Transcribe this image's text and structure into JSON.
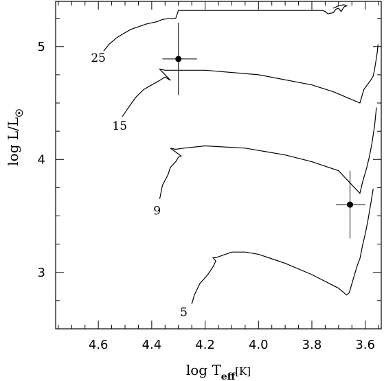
{
  "chart_data": {
    "type": "line",
    "title": "",
    "xlabel": {
      "main": "log T",
      "sub": "eff",
      "unit": "[K]"
    },
    "ylabel": {
      "main": "log L/L",
      "sub": "☉"
    },
    "xlim": [
      4.76,
      3.54
    ],
    "ylim": [
      2.5,
      5.4
    ],
    "x_reversed": true,
    "grid": false,
    "x_ticks": [
      "4.6",
      "4.4",
      "4.2",
      "4.0",
      "3.8",
      "3.6"
    ],
    "y_ticks": [
      "3",
      "4",
      "5"
    ],
    "series": [
      {
        "name": "25",
        "x": [
          4.58,
          4.56,
          4.53,
          4.48,
          4.42,
          4.38,
          4.36,
          4.33,
          4.31,
          4.3,
          4.18,
          4.0,
          3.87,
          3.76,
          3.75,
          3.74,
          3.72,
          3.71,
          3.7,
          3.69,
          3.68,
          3.67,
          3.68,
          3.7,
          3.72
        ],
        "y": [
          4.96,
          5.02,
          5.08,
          5.15,
          5.2,
          5.22,
          5.24,
          5.25,
          5.25,
          5.32,
          5.32,
          5.32,
          5.32,
          5.32,
          5.31,
          5.29,
          5.3,
          5.33,
          5.34,
          5.31,
          5.35,
          5.36,
          5.37,
          5.36,
          5.34
        ]
      },
      {
        "name": "15",
        "x": [
          4.51,
          4.49,
          4.46,
          4.43,
          4.4,
          4.37,
          4.35,
          4.33,
          4.37,
          4.35,
          4.3,
          4.2,
          4.0,
          3.8,
          3.72,
          3.62,
          3.605,
          3.58,
          3.57,
          3.565,
          3.56,
          3.555,
          3.552
        ],
        "y": [
          4.38,
          4.45,
          4.55,
          4.62,
          4.66,
          4.7,
          4.73,
          4.7,
          4.8,
          4.79,
          4.79,
          4.79,
          4.75,
          4.66,
          4.6,
          4.5,
          4.62,
          4.7,
          4.74,
          4.8,
          4.87,
          4.95,
          5.02
        ]
      },
      {
        "name": "9",
        "x": [
          4.37,
          4.36,
          4.34,
          4.33,
          4.31,
          4.3,
          4.29,
          4.33,
          4.31,
          4.28,
          4.2,
          4.05,
          3.9,
          3.8,
          3.7,
          3.62,
          3.61,
          3.595,
          3.585,
          3.575,
          3.565,
          3.558
        ],
        "y": [
          3.65,
          3.77,
          3.86,
          3.93,
          3.98,
          4.02,
          4.03,
          4.1,
          4.09,
          4.1,
          4.12,
          4.1,
          4.04,
          3.98,
          3.9,
          3.7,
          3.8,
          3.92,
          4.02,
          4.14,
          4.3,
          4.46
        ]
      },
      {
        "name": "5",
        "x": [
          4.25,
          4.24,
          4.22,
          4.19,
          4.17,
          4.16,
          4.17,
          4.16,
          4.1,
          4.05,
          4.0,
          3.95,
          3.9,
          3.8,
          3.7,
          3.68,
          3.67,
          3.66,
          3.655,
          3.65,
          3.64,
          3.63,
          3.62,
          3.61,
          3.6,
          3.59,
          3.58,
          3.57
        ],
        "y": [
          2.72,
          2.8,
          2.9,
          2.98,
          3.05,
          3.1,
          3.13,
          3.13,
          3.18,
          3.18,
          3.16,
          3.12,
          3.08,
          2.98,
          2.86,
          2.82,
          2.8,
          2.82,
          2.86,
          2.9,
          2.98,
          3.06,
          3.12,
          3.24,
          3.34,
          3.46,
          3.6,
          3.74
        ]
      }
    ],
    "points": [
      {
        "x": 4.3,
        "y": 4.89,
        "x_err": [
          4.36,
          4.23
        ],
        "y_err": [
          4.57,
          5.21
        ]
      },
      {
        "x": 3.657,
        "y": 3.6,
        "x_err": [
          3.71,
          3.6
        ],
        "y_err": [
          3.3,
          3.9
        ]
      }
    ],
    "annotations": [
      {
        "text": "25",
        "x": 4.6,
        "y": 4.9
      },
      {
        "text": "15",
        "x": 4.52,
        "y": 4.3
      },
      {
        "text": "9",
        "x": 4.38,
        "y": 3.55
      },
      {
        "text": "5",
        "x": 4.28,
        "y": 2.65
      }
    ]
  }
}
